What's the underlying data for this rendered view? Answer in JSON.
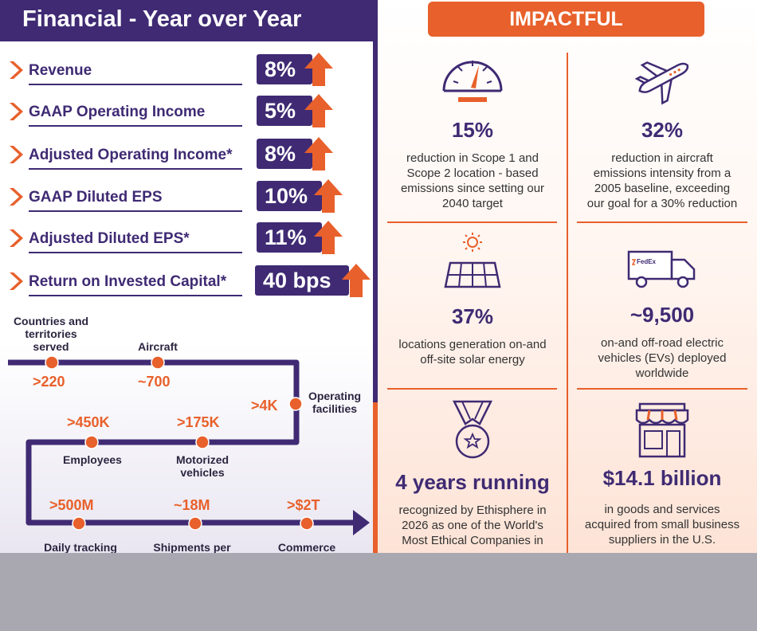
{
  "financial": {
    "title": "Financial - Year over Year",
    "metrics": [
      {
        "label": "Revenue",
        "value": "8%"
      },
      {
        "label": "GAAP Operating Income",
        "value": "5%"
      },
      {
        "label": "Adjusted Operating Income*",
        "value": "8%"
      },
      {
        "label": "GAAP Diluted EPS",
        "value": "10%"
      },
      {
        "label": "Adjusted Diluted EPS*",
        "value": "11%"
      },
      {
        "label": "Return on Invested Capital*",
        "value": "40 bps"
      }
    ],
    "network": [
      {
        "label": "Countries and territories served",
        "value": ">220"
      },
      {
        "label": "Aircraft",
        "value": "~700"
      },
      {
        "label": "Operating facilities",
        "value": ">4K"
      },
      {
        "label": "Employees",
        "value": ">450K"
      },
      {
        "label": "Motorized vehicles",
        "value": ">175K"
      },
      {
        "label": "Daily tracking",
        "value": ">500M"
      },
      {
        "label": "Shipments per",
        "value": "~18M"
      },
      {
        "label": "Commerce",
        "value": ">$2T"
      }
    ]
  },
  "impactful": {
    "title": "IMPACTFUL",
    "cells": [
      {
        "icon": "gauge-icon",
        "value": "15%",
        "description": [
          "reduction in Scope 1 and",
          "Scope 2 location - based",
          "emissions since setting our",
          "2040 target"
        ]
      },
      {
        "icon": "airplane-icon",
        "value": "32%",
        "description": [
          "reduction in aircraft",
          "emissions intensity from a",
          "2005 baseline, exceeding",
          "our goal for a 30% reduction"
        ]
      },
      {
        "icon": "solar-panel-icon",
        "value": "37%",
        "description": [
          "locations generation on-and",
          "off-site solar energy"
        ]
      },
      {
        "icon": "delivery-truck-icon",
        "value": "~9,500",
        "description": [
          "on-and off-road electric",
          "vehicles (EVs) deployed",
          "worldwide"
        ]
      },
      {
        "icon": "medal-icon",
        "value": "4 years running",
        "description": [
          "recognized by Ethisphere in",
          "2026 as one of the World's",
          "Most Ethical Companies in"
        ]
      },
      {
        "icon": "storefront-icon",
        "value": "$14.1 billion",
        "description": [
          "in goods and services",
          "acquired from small business",
          "suppliers in the U.S."
        ]
      }
    ],
    "truck_logo": "FedEx"
  },
  "colors": {
    "purple": "#3f2a73",
    "orange": "#e8602b"
  }
}
